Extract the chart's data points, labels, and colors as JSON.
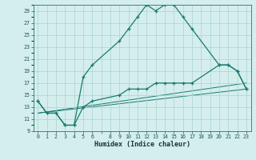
{
  "xlabel": "Humidex (Indice chaleur)",
  "background_color": "#d4eeed",
  "grid_color": "#a8d4d0",
  "line_color": "#1a7a6e",
  "xlim": [
    -0.5,
    23.5
  ],
  "ylim": [
    9,
    30
  ],
  "curve1_x": [
    0,
    1,
    2,
    3,
    4,
    5,
    6,
    9,
    10,
    11,
    12,
    13,
    14,
    15,
    16,
    17,
    20,
    21,
    22,
    23
  ],
  "curve1_y": [
    14,
    12,
    12,
    10,
    10,
    18,
    20,
    24,
    26,
    28,
    30,
    29,
    30,
    30,
    28,
    26,
    20,
    20,
    19,
    16
  ],
  "curve2_x": [
    0,
    1,
    2,
    3,
    4,
    5,
    6,
    9,
    10,
    11,
    12,
    13,
    14,
    15,
    16,
    17,
    20,
    21,
    22,
    23
  ],
  "curve2_y": [
    14,
    12,
    12,
    10,
    10,
    13,
    14,
    15,
    16,
    16,
    16,
    17,
    17,
    17,
    17,
    17,
    20,
    20,
    19,
    16
  ],
  "line1_x": [
    0,
    23
  ],
  "line1_y": [
    12,
    17
  ],
  "line2_x": [
    0,
    23
  ],
  "line2_y": [
    12,
    16
  ]
}
